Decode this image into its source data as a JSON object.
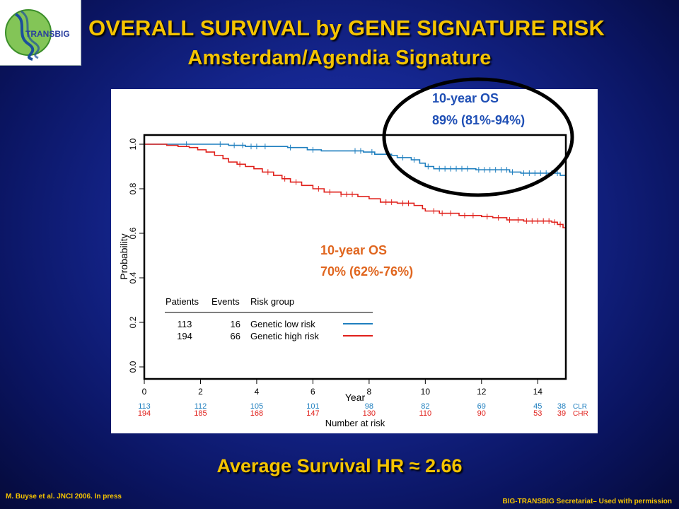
{
  "logo": {
    "text": "TRANSBIG"
  },
  "title": {
    "line1": "OVERALL SURVIVAL by GENE SIGNATURE RISK",
    "line2": "Amsterdam/Agendia Signature"
  },
  "annotations": {
    "low_os_line1": "10-year OS",
    "low_os_line2": "89% (81%-94%)",
    "high_os_line1": "10-year OS",
    "high_os_line2": "70% (62%-76%)"
  },
  "hr_text": "Average Survival HR ≈ 2.66",
  "footer": {
    "left": "M. Buyse et al. JNCI 2006. In press",
    "right": "BIG-TRANSBIG Secretariat– Used with permission"
  },
  "colors": {
    "low_risk": "#1f7fbf",
    "high_risk": "#e0201b",
    "title": "#f5c400",
    "annotation_blue": "#1f4fb5",
    "annotation_orange": "#e0661f"
  },
  "chart_data": {
    "type": "line",
    "xlabel": "Year",
    "ylabel": "Probability",
    "xlim": [
      0,
      15
    ],
    "ylim": [
      0,
      1
    ],
    "x_ticks": [
      "0",
      "2",
      "4",
      "6",
      "8",
      "10",
      "12",
      "14"
    ],
    "y_ticks": [
      "0.0",
      "0.2",
      "0.4",
      "0.6",
      "0.8",
      "1.0"
    ],
    "legend": {
      "headers": [
        "Patients",
        "Events",
        "Risk group"
      ],
      "rows": [
        {
          "patients": "113",
          "events": "16",
          "group": "Genetic low risk"
        },
        {
          "patients": "194",
          "events": "66",
          "group": "Genetic high risk"
        }
      ]
    },
    "series": [
      {
        "name": "Genetic low risk",
        "points": [
          [
            0,
            1.0
          ],
          [
            2.6,
            1.0
          ],
          [
            3.0,
            0.995
          ],
          [
            3.6,
            0.99
          ],
          [
            5.1,
            0.985
          ],
          [
            5.8,
            0.975
          ],
          [
            6.3,
            0.97
          ],
          [
            7.8,
            0.965
          ],
          [
            8.2,
            0.955
          ],
          [
            8.8,
            0.95
          ],
          [
            9.0,
            0.94
          ],
          [
            9.5,
            0.93
          ],
          [
            9.8,
            0.915
          ],
          [
            10.0,
            0.9
          ],
          [
            10.3,
            0.89
          ],
          [
            11.8,
            0.885
          ],
          [
            13.0,
            0.875
          ],
          [
            13.4,
            0.87
          ],
          [
            14.8,
            0.86
          ],
          [
            15.0,
            0.84
          ]
        ],
        "censor_x": [
          1.5,
          2.7,
          3.2,
          3.5,
          3.8,
          4.0,
          4.3,
          5.2,
          6.0,
          7.5,
          7.7,
          8.1,
          9.2,
          9.6,
          10.1,
          10.5,
          10.7,
          10.9,
          11.1,
          11.3,
          11.5,
          11.9,
          12.1,
          12.3,
          12.5,
          12.7,
          12.9,
          13.1,
          13.5,
          13.7,
          13.9,
          14.1,
          14.3,
          14.5,
          14.7
        ]
      },
      {
        "name": "Genetic high risk",
        "points": [
          [
            0,
            1.0
          ],
          [
            0.8,
            0.995
          ],
          [
            1.2,
            0.99
          ],
          [
            1.6,
            0.985
          ],
          [
            1.9,
            0.975
          ],
          [
            2.2,
            0.965
          ],
          [
            2.5,
            0.95
          ],
          [
            2.8,
            0.935
          ],
          [
            3.0,
            0.92
          ],
          [
            3.3,
            0.91
          ],
          [
            3.6,
            0.9
          ],
          [
            3.9,
            0.89
          ],
          [
            4.2,
            0.875
          ],
          [
            4.6,
            0.86
          ],
          [
            4.9,
            0.845
          ],
          [
            5.2,
            0.83
          ],
          [
            5.6,
            0.815
          ],
          [
            6.0,
            0.8
          ],
          [
            6.4,
            0.785
          ],
          [
            7.0,
            0.775
          ],
          [
            7.6,
            0.765
          ],
          [
            8.0,
            0.755
          ],
          [
            8.4,
            0.74
          ],
          [
            9.0,
            0.735
          ],
          [
            9.6,
            0.725
          ],
          [
            9.9,
            0.71
          ],
          [
            10.0,
            0.7
          ],
          [
            10.5,
            0.69
          ],
          [
            11.2,
            0.68
          ],
          [
            12.0,
            0.675
          ],
          [
            12.4,
            0.67
          ],
          [
            12.9,
            0.66
          ],
          [
            13.5,
            0.655
          ],
          [
            14.5,
            0.65
          ],
          [
            14.7,
            0.64
          ],
          [
            14.9,
            0.625
          ],
          [
            15.0,
            0.62
          ]
        ],
        "censor_x": [
          3.4,
          4.4,
          5.0,
          5.4,
          6.2,
          6.6,
          7.0,
          7.2,
          7.4,
          8.6,
          8.8,
          9.2,
          9.4,
          10.3,
          10.6,
          10.9,
          11.4,
          11.7,
          12.2,
          12.6,
          13.0,
          13.3,
          13.6,
          13.8,
          14.0,
          14.2,
          14.4,
          14.6,
          14.8
        ]
      }
    ],
    "risk_table": {
      "title": "Number at risk",
      "x": [
        0,
        2,
        4,
        6,
        8,
        10,
        12,
        14,
        15
      ],
      "rows": [
        {
          "label": "CLR",
          "values": [
            "113",
            "112",
            "105",
            "101",
            "98",
            "82",
            "69",
            "45",
            "38"
          ]
        },
        {
          "label": "CHR",
          "values": [
            "194",
            "185",
            "168",
            "147",
            "130",
            "110",
            "90",
            "53",
            "39"
          ]
        }
      ]
    }
  }
}
